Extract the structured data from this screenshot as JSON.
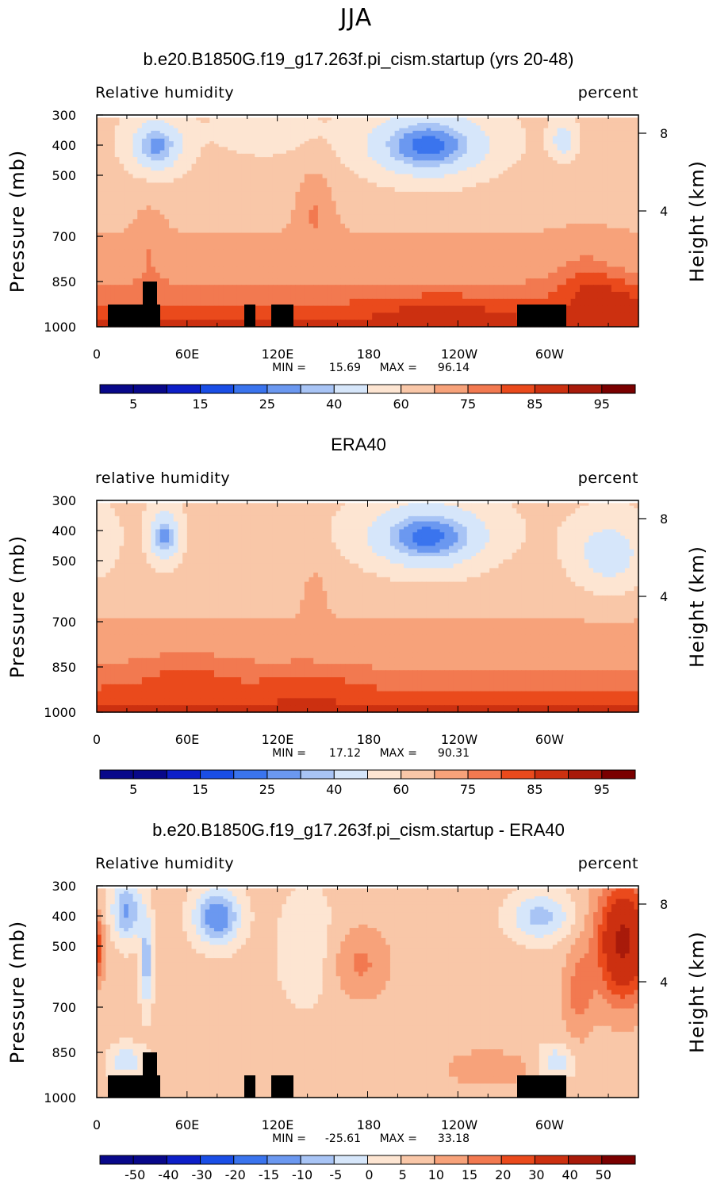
{
  "season": "JJA",
  "pressure_label": "Pressure  (mb)",
  "height_label": "Height  (km)",
  "colors": {
    "rh": [
      "#08088a",
      "#0d1fc8",
      "#1a4ee6",
      "#3a74ee",
      "#6b98f0",
      "#a8c4f5",
      "#d6e6fa",
      "#fde5d2",
      "#f9c7a8",
      "#f7a27a",
      "#f27950",
      "#ea4a1c",
      "#cc3010",
      "#a81a0a",
      "#7a0000"
    ],
    "diff": [
      "#08088a",
      "#0d1fc8",
      "#1a4ee6",
      "#3a74ee",
      "#6b98f0",
      "#a8c4f5",
      "#d6e6fa",
      "#fde5d2",
      "#f9c7a8",
      "#f7a27a",
      "#f27950",
      "#ea4a1c",
      "#cc3010",
      "#a81a0a",
      "#7a0000"
    ]
  },
  "chart_data": [
    {
      "type": "heatmap",
      "title": "b.e20.B1850G.f19_g17.263f.pi_cism.startup (yrs 20-48)",
      "left_label": "Relative humidity",
      "right_label": "percent",
      "xlabel": "",
      "ylabel": "Pressure  (mb)",
      "y2label": "Height  (km)",
      "x_ticks": [
        "0",
        "60E",
        "120E",
        "180",
        "120W",
        "60W"
      ],
      "y_ticks": [
        "300",
        "400",
        "500",
        "700",
        "850",
        "1000"
      ],
      "y2_ticks": [
        "8",
        "4"
      ],
      "min_label": "MIN =",
      "min_value": "15.69",
      "max_label": "MAX =",
      "max_value": "96.14",
      "colorbar_labels": [
        "5",
        "15",
        "25",
        "40",
        "60",
        "75",
        "85",
        "95"
      ],
      "min": 15.69,
      "max": 96.14
    },
    {
      "type": "heatmap",
      "title": "ERA40",
      "left_label": "relative humidity",
      "right_label": "percent",
      "xlabel": "",
      "ylabel": "Pressure  (mb)",
      "y2label": "Height  (km)",
      "x_ticks": [
        "0",
        "60E",
        "120E",
        "180",
        "120W",
        "60W"
      ],
      "y_ticks": [
        "300",
        "400",
        "500",
        "700",
        "850",
        "1000"
      ],
      "y2_ticks": [
        "8",
        "4"
      ],
      "min_label": "MIN =",
      "min_value": "17.12",
      "max_label": "MAX =",
      "max_value": "90.31",
      "colorbar_labels": [
        "5",
        "15",
        "25",
        "40",
        "60",
        "75",
        "85",
        "95"
      ],
      "min": 17.12,
      "max": 90.31
    },
    {
      "type": "heatmap",
      "title": "b.e20.B1850G.f19_g17.263f.pi_cism.startup - ERA40",
      "left_label": "Relative humidity",
      "right_label": "percent",
      "xlabel": "",
      "ylabel": "Pressure  (mb)",
      "y2label": "Height  (km)",
      "x_ticks": [
        "0",
        "60E",
        "120E",
        "180",
        "120W",
        "60W"
      ],
      "y_ticks": [
        "300",
        "400",
        "500",
        "700",
        "850",
        "1000"
      ],
      "y2_ticks": [
        "8",
        "4"
      ],
      "min_label": "MIN =",
      "min_value": "-25.61",
      "max_label": "MAX =",
      "max_value": "33.18",
      "colorbar_labels": [
        "-50",
        "-40",
        "-30",
        "-20",
        "-15",
        "-10",
        "-5",
        "0",
        "5",
        "10",
        "15",
        "20",
        "30",
        "40",
        "50"
      ],
      "min": -25.61,
      "max": 33.18
    }
  ]
}
